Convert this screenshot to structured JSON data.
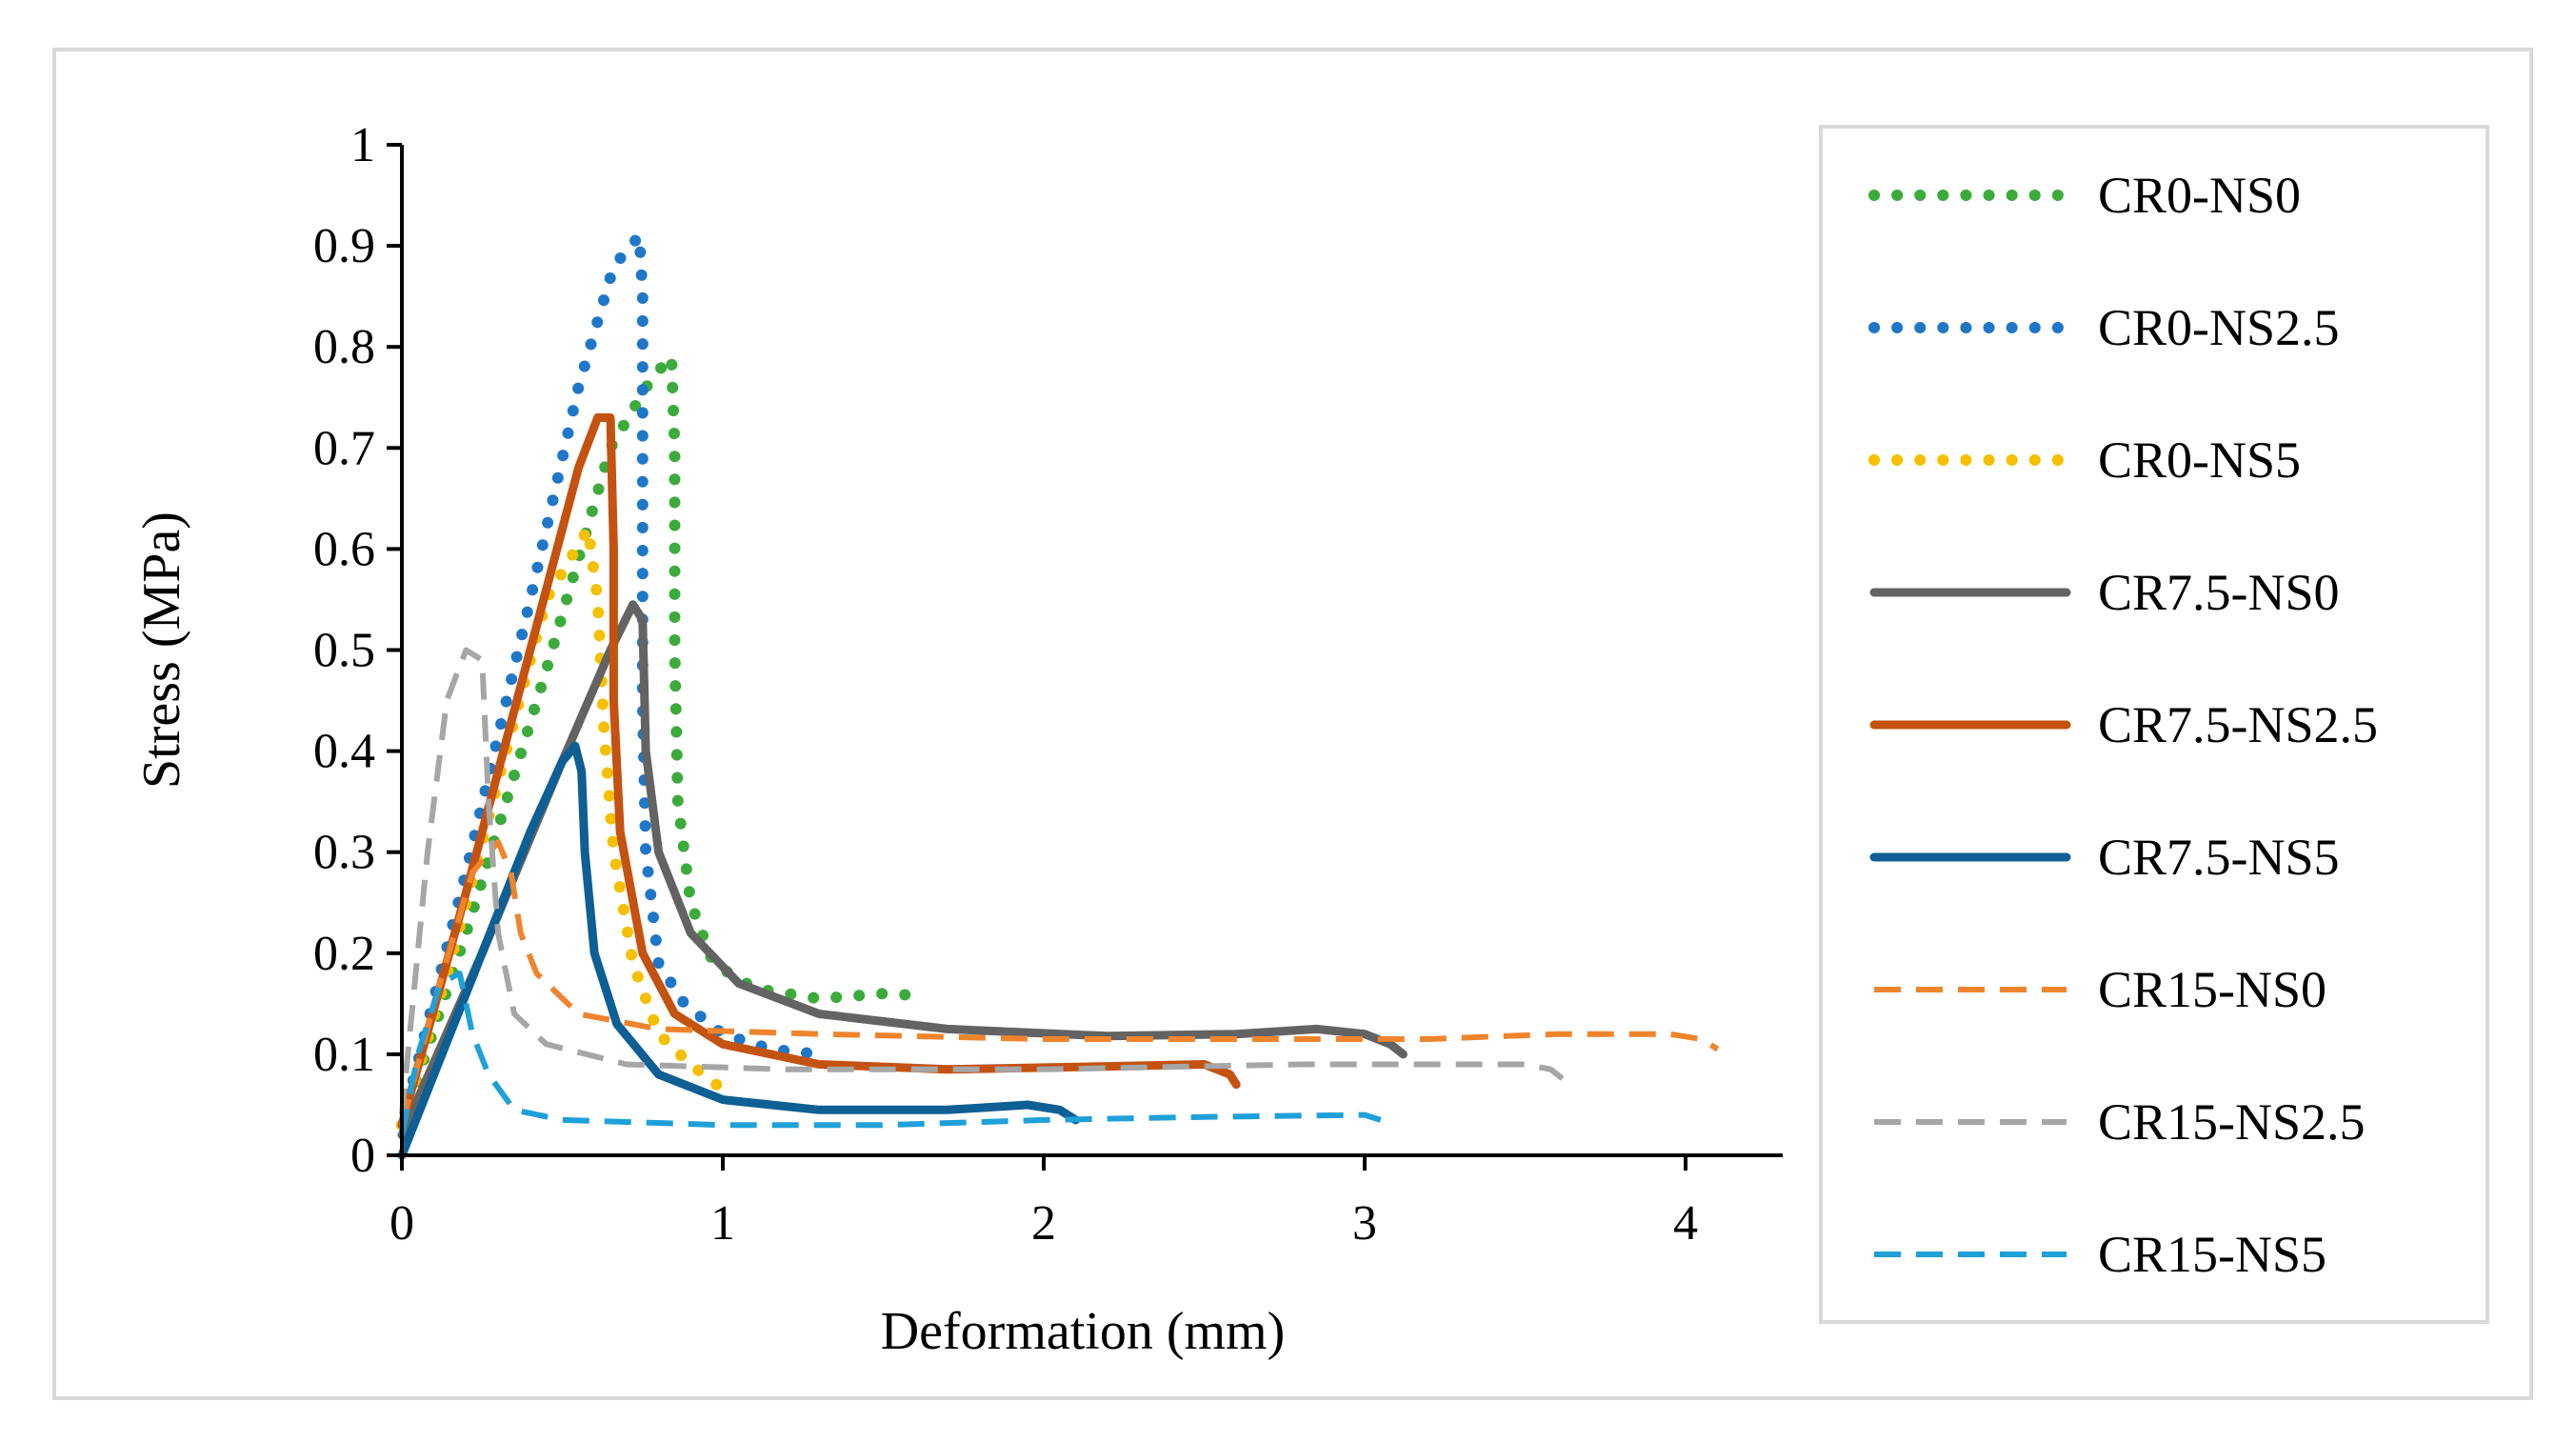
{
  "chart_data": {
    "type": "line",
    "title": "",
    "xlabel": "Deformation (mm)",
    "ylabel": "Stress (MPa)",
    "xlim": [
      0,
      4.3
    ],
    "ylim": [
      0,
      1
    ],
    "xticks": [
      "0",
      "1",
      "2",
      "3",
      "4"
    ],
    "yticks": [
      "0",
      "0.1",
      "0.2",
      "0.3",
      "0.4",
      "0.5",
      "0.6",
      "0.7",
      "0.8",
      "0.9",
      "1"
    ],
    "legend_position": "right",
    "series": [
      {
        "name": "CR0-NS0",
        "color": "#3cab3c",
        "style": "dotted",
        "points": [
          [
            0,
            0.03
          ],
          [
            0.2,
            0.22
          ],
          [
            0.45,
            0.48
          ],
          [
            0.65,
            0.7
          ],
          [
            0.78,
            0.77
          ],
          [
            0.84,
            0.79
          ],
          [
            0.85,
            0.7
          ],
          [
            0.85,
            0.5
          ],
          [
            0.86,
            0.35
          ],
          [
            0.9,
            0.25
          ],
          [
            0.97,
            0.19
          ],
          [
            1.1,
            0.165
          ],
          [
            1.3,
            0.155
          ],
          [
            1.5,
            0.16
          ],
          [
            1.62,
            0.158
          ]
        ]
      },
      {
        "name": "CR0-NS2.5",
        "color": "#1f77c8",
        "style": "dotted",
        "points": [
          [
            0,
            0.03
          ],
          [
            0.2,
            0.28
          ],
          [
            0.4,
            0.55
          ],
          [
            0.55,
            0.76
          ],
          [
            0.66,
            0.88
          ],
          [
            0.74,
            0.91
          ],
          [
            0.75,
            0.85
          ],
          [
            0.75,
            0.65
          ],
          [
            0.75,
            0.45
          ],
          [
            0.76,
            0.3
          ],
          [
            0.8,
            0.19
          ],
          [
            0.88,
            0.15
          ],
          [
            1.0,
            0.12
          ],
          [
            1.15,
            0.105
          ],
          [
            1.3,
            0.1
          ]
        ]
      },
      {
        "name": "CR0-NS5",
        "color": "#f5c000",
        "style": "dotted",
        "points": [
          [
            0,
            0.03
          ],
          [
            0.15,
            0.19
          ],
          [
            0.3,
            0.37
          ],
          [
            0.45,
            0.55
          ],
          [
            0.58,
            0.62
          ],
          [
            0.61,
            0.55
          ],
          [
            0.63,
            0.42
          ],
          [
            0.66,
            0.3
          ],
          [
            0.72,
            0.19
          ],
          [
            0.8,
            0.12
          ],
          [
            0.9,
            0.09
          ],
          [
            1.0,
            0.065
          ]
        ]
      },
      {
        "name": "CR7.5-NS0",
        "color": "#636363",
        "style": "solid",
        "points": [
          [
            0,
            0.02
          ],
          [
            0.25,
            0.2
          ],
          [
            0.5,
            0.39
          ],
          [
            0.65,
            0.5
          ],
          [
            0.72,
            0.545
          ],
          [
            0.75,
            0.53
          ],
          [
            0.76,
            0.4
          ],
          [
            0.8,
            0.3
          ],
          [
            0.9,
            0.22
          ],
          [
            1.05,
            0.17
          ],
          [
            1.3,
            0.14
          ],
          [
            1.7,
            0.125
          ],
          [
            2.2,
            0.118
          ],
          [
            2.6,
            0.12
          ],
          [
            2.85,
            0.125
          ],
          [
            3.0,
            0.12
          ],
          [
            3.08,
            0.11
          ],
          [
            3.12,
            0.1
          ]
        ]
      },
      {
        "name": "CR7.5-NS2.5",
        "color": "#c45210",
        "style": "solid",
        "points": [
          [
            0,
            0.03
          ],
          [
            0.2,
            0.26
          ],
          [
            0.4,
            0.5
          ],
          [
            0.55,
            0.68
          ],
          [
            0.61,
            0.73
          ],
          [
            0.65,
            0.73
          ],
          [
            0.66,
            0.6
          ],
          [
            0.66,
            0.45
          ],
          [
            0.68,
            0.32
          ],
          [
            0.75,
            0.2
          ],
          [
            0.85,
            0.14
          ],
          [
            1.0,
            0.11
          ],
          [
            1.3,
            0.09
          ],
          [
            1.7,
            0.085
          ],
          [
            2.2,
            0.088
          ],
          [
            2.5,
            0.09
          ],
          [
            2.58,
            0.08
          ],
          [
            2.6,
            0.07
          ]
        ]
      },
      {
        "name": "CR7.5-NS5",
        "color": "#0e5f94",
        "style": "solid",
        "points": [
          [
            0,
            0.0
          ],
          [
            0.2,
            0.16
          ],
          [
            0.4,
            0.32
          ],
          [
            0.5,
            0.39
          ],
          [
            0.54,
            0.405
          ],
          [
            0.56,
            0.38
          ],
          [
            0.57,
            0.3
          ],
          [
            0.6,
            0.2
          ],
          [
            0.67,
            0.13
          ],
          [
            0.8,
            0.08
          ],
          [
            1.0,
            0.055
          ],
          [
            1.3,
            0.045
          ],
          [
            1.7,
            0.045
          ],
          [
            1.95,
            0.05
          ],
          [
            2.05,
            0.045
          ],
          [
            2.1,
            0.035
          ]
        ]
      },
      {
        "name": "CR15-NS0",
        "color": "#f0842c",
        "style": "dashed",
        "points": [
          [
            0,
            0.03
          ],
          [
            0.1,
            0.15
          ],
          [
            0.22,
            0.28
          ],
          [
            0.3,
            0.31
          ],
          [
            0.34,
            0.28
          ],
          [
            0.37,
            0.22
          ],
          [
            0.42,
            0.18
          ],
          [
            0.55,
            0.14
          ],
          [
            0.8,
            0.125
          ],
          [
            1.3,
            0.12
          ],
          [
            2.0,
            0.115
          ],
          [
            2.6,
            0.115
          ],
          [
            3.2,
            0.115
          ],
          [
            3.6,
            0.12
          ],
          [
            3.95,
            0.12
          ],
          [
            4.05,
            0.115
          ],
          [
            4.1,
            0.105
          ]
        ]
      },
      {
        "name": "CR15-NS2.5",
        "color": "#a6a6a6",
        "style": "dashed",
        "points": [
          [
            0,
            0.04
          ],
          [
            0.08,
            0.3
          ],
          [
            0.14,
            0.45
          ],
          [
            0.2,
            0.5
          ],
          [
            0.25,
            0.49
          ],
          [
            0.27,
            0.35
          ],
          [
            0.3,
            0.22
          ],
          [
            0.35,
            0.14
          ],
          [
            0.45,
            0.11
          ],
          [
            0.7,
            0.09
          ],
          [
            1.2,
            0.085
          ],
          [
            2.0,
            0.085
          ],
          [
            2.8,
            0.09
          ],
          [
            3.5,
            0.09
          ],
          [
            3.58,
            0.085
          ],
          [
            3.62,
            0.075
          ]
        ]
      },
      {
        "name": "CR15-NS5",
        "color": "#1fa0d8",
        "style": "dashed",
        "points": [
          [
            0,
            0.02
          ],
          [
            0.05,
            0.1
          ],
          [
            0.12,
            0.17
          ],
          [
            0.18,
            0.18
          ],
          [
            0.22,
            0.12
          ],
          [
            0.27,
            0.08
          ],
          [
            0.35,
            0.045
          ],
          [
            0.5,
            0.035
          ],
          [
            1.0,
            0.03
          ],
          [
            1.5,
            0.03
          ],
          [
            2.0,
            0.035
          ],
          [
            2.5,
            0.038
          ],
          [
            3.0,
            0.04
          ],
          [
            3.05,
            0.035
          ]
        ]
      }
    ]
  }
}
